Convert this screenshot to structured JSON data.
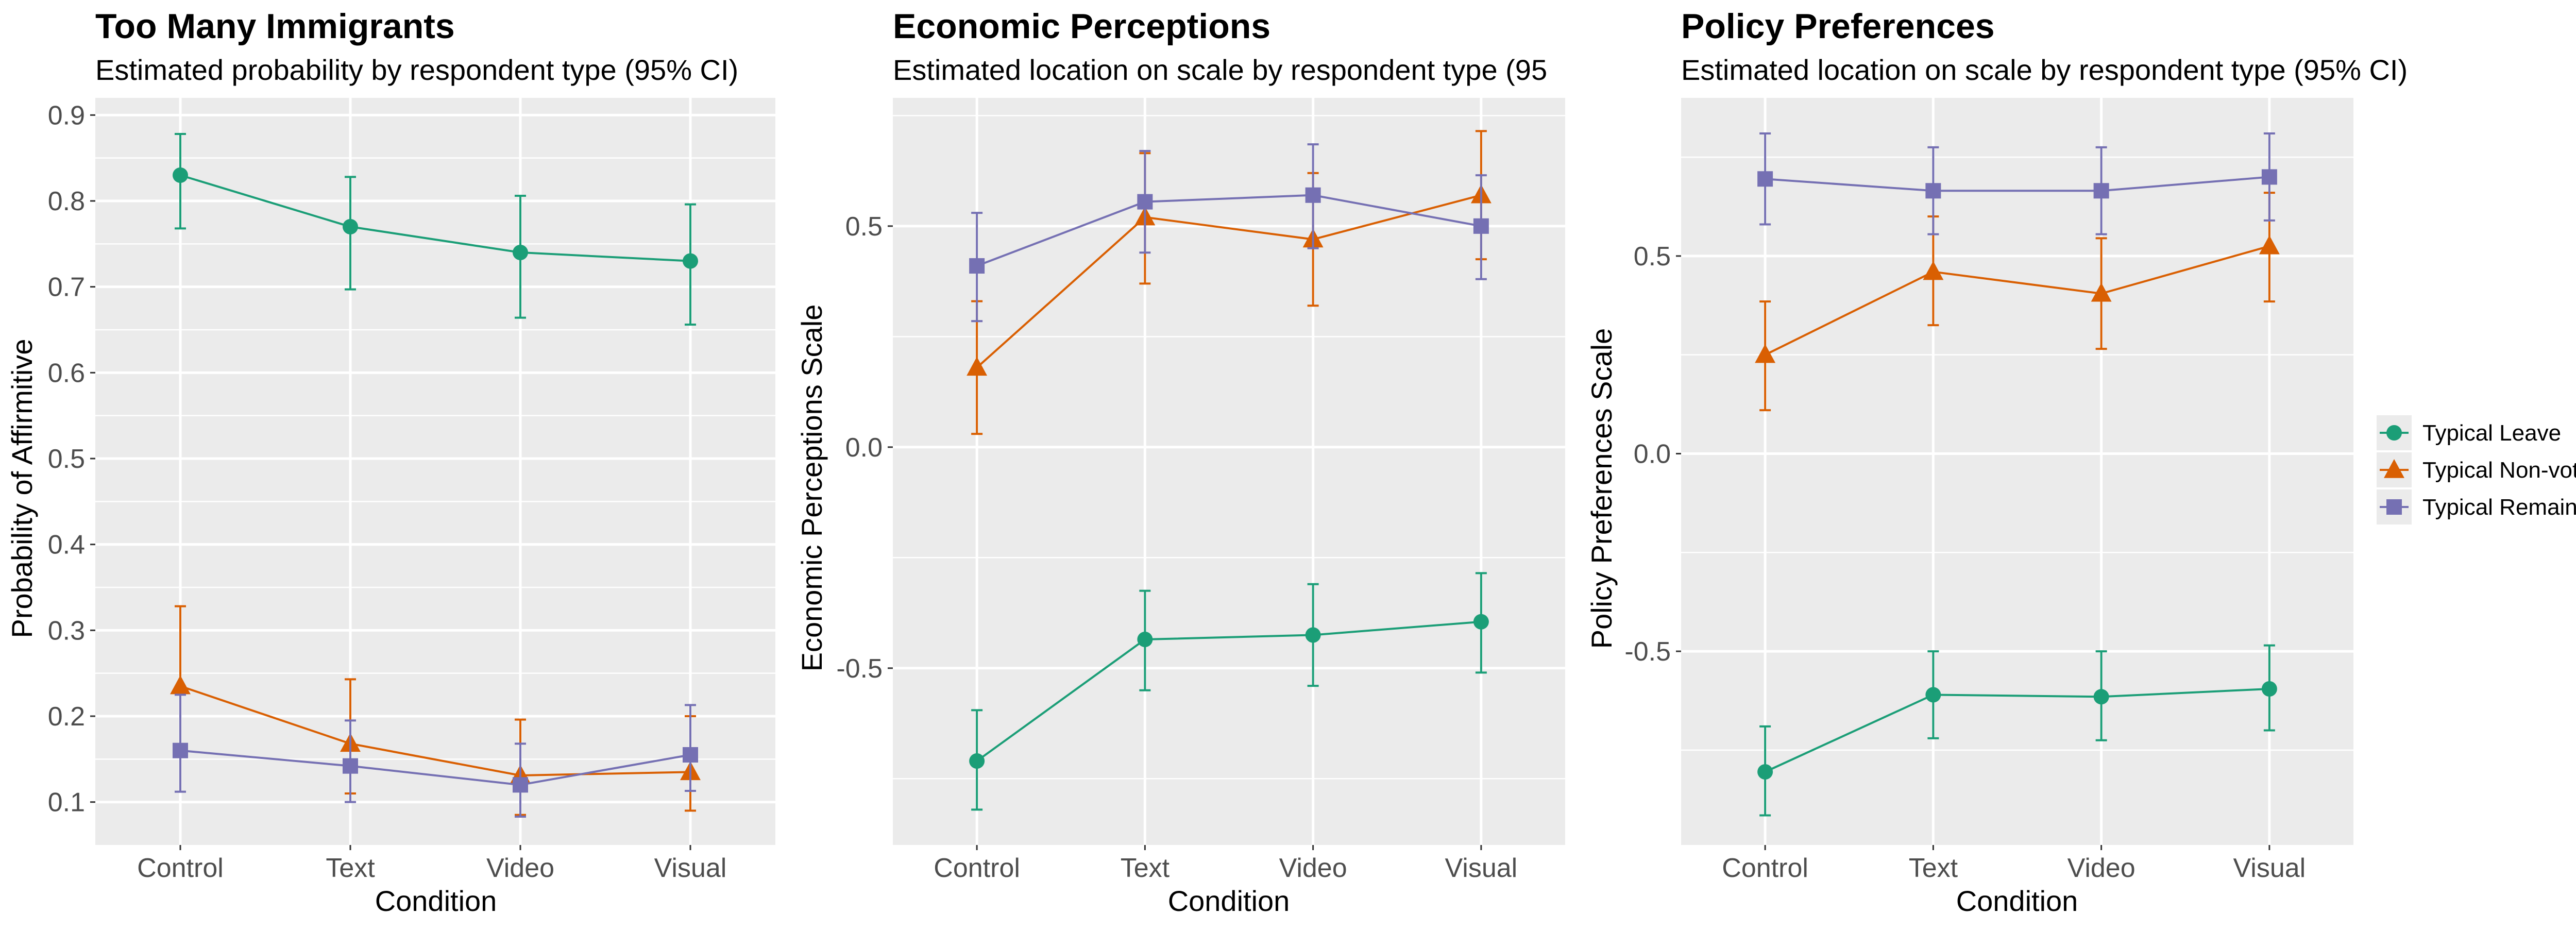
{
  "chart_data": [
    {
      "type": "line",
      "title": "Too Many Immigrants",
      "subtitle": "Estimated probability by respondent type (95% CI)",
      "xlabel": "Condition",
      "ylabel": "Probability of Affirmitive",
      "categories": [
        "Control",
        "Text",
        "Video",
        "Visual"
      ],
      "ylim": [
        0.05,
        0.92
      ],
      "yticks": [
        0.1,
        0.2,
        0.3,
        0.4,
        0.5,
        0.6,
        0.7,
        0.8,
        0.9
      ],
      "ytick_labels": [
        "0.1",
        "0.2",
        "0.3",
        "0.4",
        "0.5",
        "0.6",
        "0.7",
        "0.8",
        "0.9"
      ],
      "series": [
        {
          "name": "Typical Leave",
          "values": [
            0.83,
            0.77,
            0.74,
            0.73
          ],
          "lower": [
            0.768,
            0.697,
            0.664,
            0.656
          ],
          "upper": [
            0.878,
            0.828,
            0.806,
            0.796
          ]
        },
        {
          "name": "Typical Non-voter",
          "values": [
            0.235,
            0.168,
            0.131,
            0.135
          ],
          "lower": [
            0.16,
            0.11,
            0.085,
            0.09
          ],
          "upper": [
            0.328,
            0.243,
            0.196,
            0.2
          ]
        },
        {
          "name": "Typical Remain",
          "values": [
            0.16,
            0.142,
            0.12,
            0.155
          ],
          "lower": [
            0.112,
            0.1,
            0.083,
            0.113
          ],
          "upper": [
            0.225,
            0.195,
            0.168,
            0.213
          ]
        }
      ],
      "grid": true
    },
    {
      "type": "line",
      "title": "Economic Perceptions",
      "subtitle": "Estimated location on scale by respondent type (95",
      "xlabel": "Condition",
      "ylabel": "Economic Perceptions Scale",
      "categories": [
        "Control",
        "Text",
        "Video",
        "Visual"
      ],
      "ylim": [
        -0.9,
        0.79
      ],
      "yticks": [
        -0.5,
        0,
        0.5
      ],
      "ytick_labels": [
        "-0.5",
        "0.0",
        "0.5"
      ],
      "series": [
        {
          "name": "Typical Leave",
          "values": [
            -0.71,
            -0.435,
            -0.425,
            -0.395
          ],
          "lower": [
            -0.82,
            -0.55,
            -0.54,
            -0.51
          ],
          "upper": [
            -0.595,
            -0.325,
            -0.31,
            -0.285
          ]
        },
        {
          "name": "Typical Non-voter",
          "values": [
            0.18,
            0.52,
            0.47,
            0.57
          ],
          "lower": [
            0.03,
            0.37,
            0.32,
            0.425
          ],
          "upper": [
            0.33,
            0.665,
            0.62,
            0.715
          ]
        },
        {
          "name": "Typical Remain",
          "values": [
            0.41,
            0.555,
            0.57,
            0.5
          ],
          "lower": [
            0.285,
            0.44,
            0.45,
            0.38
          ],
          "upper": [
            0.53,
            0.67,
            0.685,
            0.615
          ]
        }
      ],
      "grid": true
    },
    {
      "type": "line",
      "title": "Policy Preferences",
      "subtitle": "Estimated location on scale by respondent type (95% CI)",
      "xlabel": "Condition",
      "ylabel": "Policy Preferences Scale",
      "categories": [
        "Control",
        "Text",
        "Video",
        "Visual"
      ],
      "ylim": [
        -0.99,
        0.9
      ],
      "yticks": [
        -0.5,
        0,
        0.5
      ],
      "ytick_labels": [
        "-0.5",
        "0.0",
        "0.5"
      ],
      "series": [
        {
          "name": "Typical Leave",
          "values": [
            -0.805,
            -0.61,
            -0.615,
            -0.595
          ],
          "lower": [
            -0.915,
            -0.72,
            -0.725,
            -0.7
          ],
          "upper": [
            -0.69,
            -0.5,
            -0.5,
            -0.485
          ]
        },
        {
          "name": "Typical Non-voter",
          "values": [
            0.25,
            0.46,
            0.405,
            0.525
          ],
          "lower": [
            0.11,
            0.325,
            0.265,
            0.385
          ],
          "upper": [
            0.385,
            0.6,
            0.545,
            0.66
          ]
        },
        {
          "name": "Typical Remain",
          "values": [
            0.695,
            0.665,
            0.665,
            0.7
          ],
          "lower": [
            0.58,
            0.555,
            0.555,
            0.59
          ],
          "upper": [
            0.81,
            0.775,
            0.775,
            0.81
          ]
        }
      ],
      "grid": true
    }
  ],
  "legend": {
    "placement": "right",
    "items": [
      {
        "label": "Typical Leave",
        "shape": "circle",
        "color": "#1b9e77"
      },
      {
        "label": "Typical Non-voter",
        "shape": "triangle",
        "color": "#d95f02"
      },
      {
        "label": "Typical Remain",
        "shape": "square",
        "color": "#7570b3"
      }
    ]
  },
  "colors": {
    "panel_background": "#ebebeb",
    "grid_major": "#ffffff",
    "series": [
      "#1b9e77",
      "#d95f02",
      "#7570b3"
    ]
  }
}
